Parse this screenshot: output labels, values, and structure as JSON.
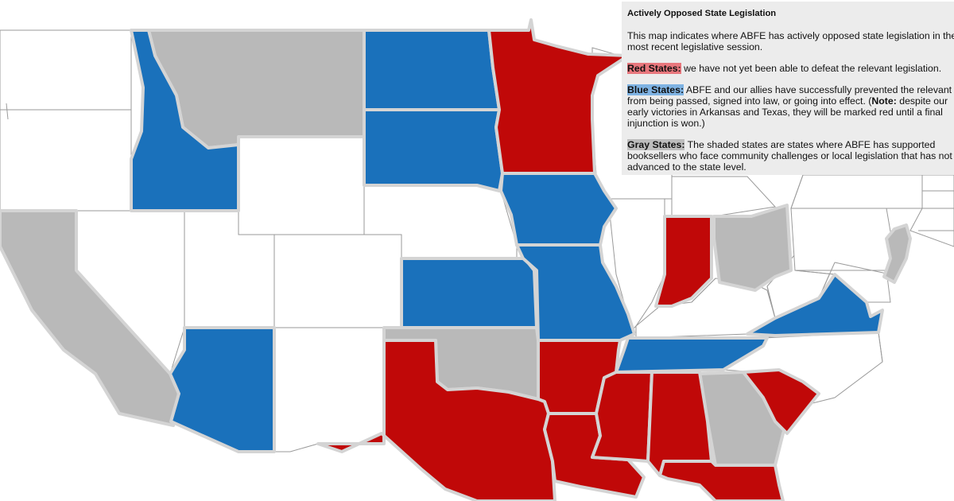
{
  "legend": {
    "title": "Actively Opposed State Legislation",
    "intro": "This map indicates where ABFE has actively opposed state legislation in the most recent legislative session.",
    "red": {
      "label": "Red States:",
      "text": "we have not yet been able to defeat the relevant legislation.",
      "color": "#e8777d"
    },
    "blue": {
      "label": "Blue States:",
      "text_before_note": "ABFE and our allies have successfully prevented the relevant bills from being passed, signed into law, or going into effect. (",
      "note_label": "Note:",
      "text_after_note": "despite our early victories in Arkansas and Texas, they will be marked red until a final injunction is won.)",
      "color": "#7fb3e3"
    },
    "gray": {
      "label": "Gray States:",
      "text": "The shaded states are states where ABFE has supported booksellers who face community challenges or local legislation that has not advanced to the state level.",
      "color": "#bdbdbd"
    }
  },
  "colors": {
    "red": "#c00808",
    "blue": "#1a71bb",
    "gray": "#b9b9b9",
    "white": "#ffffff",
    "border": "#d4d4d4"
  },
  "states": {
    "red": [
      "Minnesota",
      "Indiana",
      "Texas",
      "Arkansas",
      "Louisiana",
      "Mississippi",
      "Alabama",
      "South Carolina",
      "Florida"
    ],
    "blue": [
      "Idaho",
      "North Dakota",
      "South Dakota",
      "Iowa",
      "Kansas",
      "Missouri",
      "Arizona",
      "Tennessee",
      "Virginia"
    ],
    "gray": [
      "Montana",
      "California",
      "Oklahoma",
      "Ohio",
      "Georgia",
      "New Jersey"
    ]
  }
}
